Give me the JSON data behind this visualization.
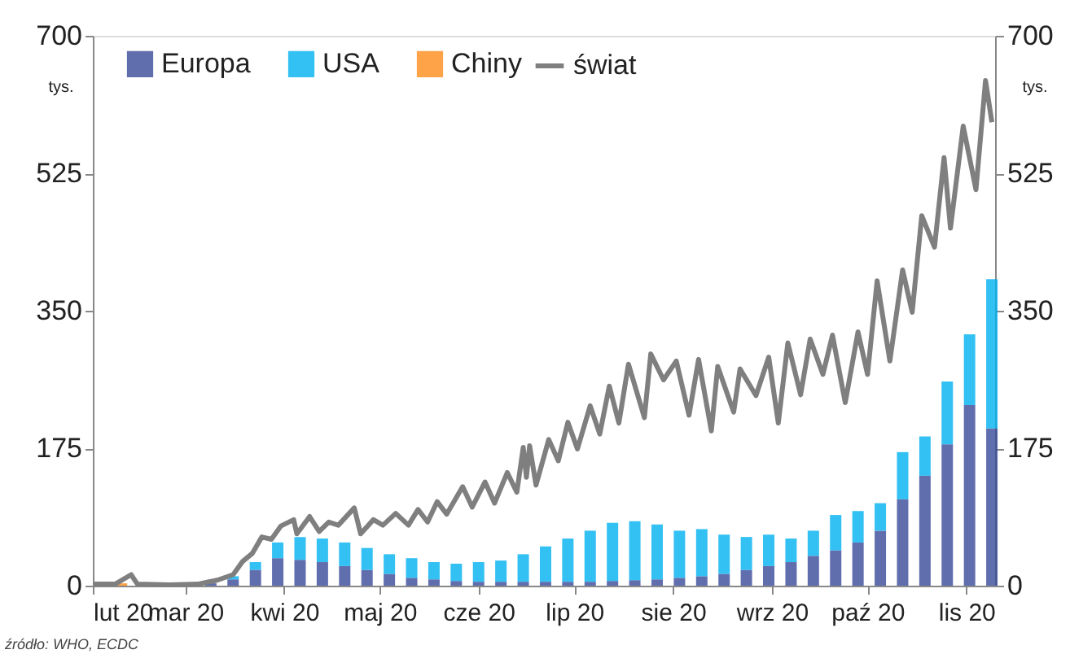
{
  "chart_data": {
    "type": "bar",
    "stacked": true,
    "x": [
      "2020-02-03",
      "2020-02-10",
      "2020-02-17",
      "2020-02-24",
      "2020-03-02",
      "2020-03-09",
      "2020-03-16",
      "2020-03-23",
      "2020-03-30",
      "2020-04-06",
      "2020-04-13",
      "2020-04-20",
      "2020-04-27",
      "2020-05-04",
      "2020-05-11",
      "2020-05-18",
      "2020-05-25",
      "2020-06-01",
      "2020-06-08",
      "2020-06-15",
      "2020-06-22",
      "2020-06-29",
      "2020-07-06",
      "2020-07-13",
      "2020-07-20",
      "2020-07-27",
      "2020-08-03",
      "2020-08-10",
      "2020-08-17",
      "2020-08-24",
      "2020-08-31",
      "2020-09-07",
      "2020-09-14",
      "2020-09-21",
      "2020-09-28",
      "2020-10-05",
      "2020-10-12",
      "2020-10-19",
      "2020-10-26",
      "2020-11-02",
      "2020-11-09"
    ],
    "series": [
      {
        "name": "Europa",
        "color": "#3a4a9a",
        "values": [
          0,
          0,
          0,
          0,
          1,
          3,
          8,
          20,
          35,
          33,
          30,
          25,
          20,
          15,
          10,
          8,
          6,
          5,
          5,
          5,
          5,
          5,
          5,
          6,
          7,
          8,
          10,
          12,
          15,
          20,
          25,
          30,
          38,
          45,
          55,
          70,
          110,
          140,
          180,
          230,
          200
        ]
      },
      {
        "name": "USA",
        "color": "#00b0f0",
        "values": [
          0,
          0,
          0,
          0,
          0,
          0,
          4,
          10,
          20,
          29,
          30,
          30,
          28,
          25,
          25,
          22,
          22,
          25,
          27,
          35,
          45,
          55,
          65,
          74,
          75,
          70,
          60,
          60,
          50,
          42,
          40,
          30,
          32,
          45,
          40,
          35,
          60,
          50,
          80,
          90,
          190
        ]
      },
      {
        "name": "Chiny",
        "color": "#ff8c1a",
        "values": [
          3,
          3,
          null,
          null,
          0,
          0,
          0,
          0,
          0,
          0,
          0,
          0,
          0,
          0,
          0,
          0,
          0,
          0,
          0,
          0,
          0,
          0,
          0,
          0,
          0,
          0,
          0,
          0,
          0,
          0,
          0,
          0,
          0,
          0,
          0,
          0,
          0,
          0,
          0,
          0,
          0
        ]
      },
      {
        "name": "świat",
        "type": "line",
        "axis": "y2",
        "color": "#7f7f7f",
        "x": [
          "2020-02-01",
          "2020-02-08",
          "2020-02-13",
          "2020-02-15",
          "2020-02-25",
          "2020-03-05",
          "2020-03-11",
          "2020-03-16",
          "2020-03-19",
          "2020-03-22",
          "2020-03-25",
          "2020-03-28",
          "2020-03-31",
          "2020-04-04",
          "2020-04-05",
          "2020-04-09",
          "2020-04-12",
          "2020-04-15",
          "2020-04-18",
          "2020-04-23",
          "2020-04-25",
          "2020-04-29",
          "2020-05-02",
          "2020-05-06",
          "2020-05-10",
          "2020-05-13",
          "2020-05-16",
          "2020-05-19",
          "2020-05-22",
          "2020-05-27",
          "2020-05-30",
          "2020-06-03",
          "2020-06-06",
          "2020-06-10",
          "2020-06-13",
          "2020-06-15",
          "2020-06-16",
          "2020-06-17",
          "2020-06-19",
          "2020-06-23",
          "2020-06-26",
          "2020-06-29",
          "2020-07-02",
          "2020-07-06",
          "2020-07-09",
          "2020-07-12",
          "2020-07-15",
          "2020-07-18",
          "2020-07-23",
          "2020-07-25",
          "2020-07-29",
          "2020-08-02",
          "2020-08-06",
          "2020-08-09",
          "2020-08-13",
          "2020-08-15",
          "2020-08-20",
          "2020-08-22",
          "2020-08-27",
          "2020-08-31",
          "2020-09-03",
          "2020-09-06",
          "2020-09-10",
          "2020-09-13",
          "2020-09-17",
          "2020-09-20",
          "2020-09-24",
          "2020-09-28",
          "2020-10-01",
          "2020-10-04",
          "2020-10-08",
          "2020-10-12",
          "2020-10-15",
          "2020-10-18",
          "2020-10-22",
          "2020-10-25",
          "2020-10-27",
          "2020-10-31",
          "2020-11-04",
          "2020-11-07",
          "2020-11-09"
        ],
        "values": [
          2,
          2,
          14,
          2,
          1,
          2,
          7,
          14,
          31,
          41,
          62,
          59,
          76,
          84,
          66,
          88,
          69,
          81,
          77,
          99,
          66,
          84,
          77,
          92,
          77,
          97,
          81,
          107,
          91,
          126,
          100,
          132,
          105,
          144,
          119,
          176,
          138,
          178,
          128,
          186,
          159,
          208,
          174,
          229,
          193,
          254,
          207,
          282,
          214,
          295,
          262,
          286,
          217,
          288,
          197,
          279,
          221,
          276,
          242,
          291,
          207,
          309,
          243,
          314,
          269,
          319,
          233,
          323,
          269,
          388,
          286,
          402,
          348,
          471,
          431,
          545,
          455,
          585,
          504,
          643,
          590
        ]
      }
    ],
    "xlim": [
      "2020-02-01",
      "2020-11-10"
    ],
    "xticks": [
      {
        "value": "2020-02-01",
        "label": "lut 20"
      },
      {
        "value": "2020-03-01",
        "label": "mar 20"
      },
      {
        "value": "2020-04-01",
        "label": "kwi 20"
      },
      {
        "value": "2020-05-01",
        "label": "maj 20"
      },
      {
        "value": "2020-06-01",
        "label": "cze 20"
      },
      {
        "value": "2020-07-01",
        "label": "lip 20"
      },
      {
        "value": "2020-08-01",
        "label": "sie 20"
      },
      {
        "value": "2020-09-01",
        "label": "wrz 20"
      },
      {
        "value": "2020-10-01",
        "label": "paź 20"
      },
      {
        "value": "2020-11-01",
        "label": "lis 20"
      }
    ],
    "ylim": [
      0,
      700
    ],
    "yticks": [
      0,
      175,
      350,
      525,
      700
    ],
    "y2lim": [
      0,
      700
    ],
    "y2ticks": [
      0,
      175,
      350,
      525,
      700
    ],
    "ylabel": "tys.",
    "y2label": "tys.",
    "annotations": [
      "źródło: WHO, ECDC"
    ],
    "legend": "top",
    "grid": false,
    "line_style": "solid",
    "marker": "none"
  }
}
